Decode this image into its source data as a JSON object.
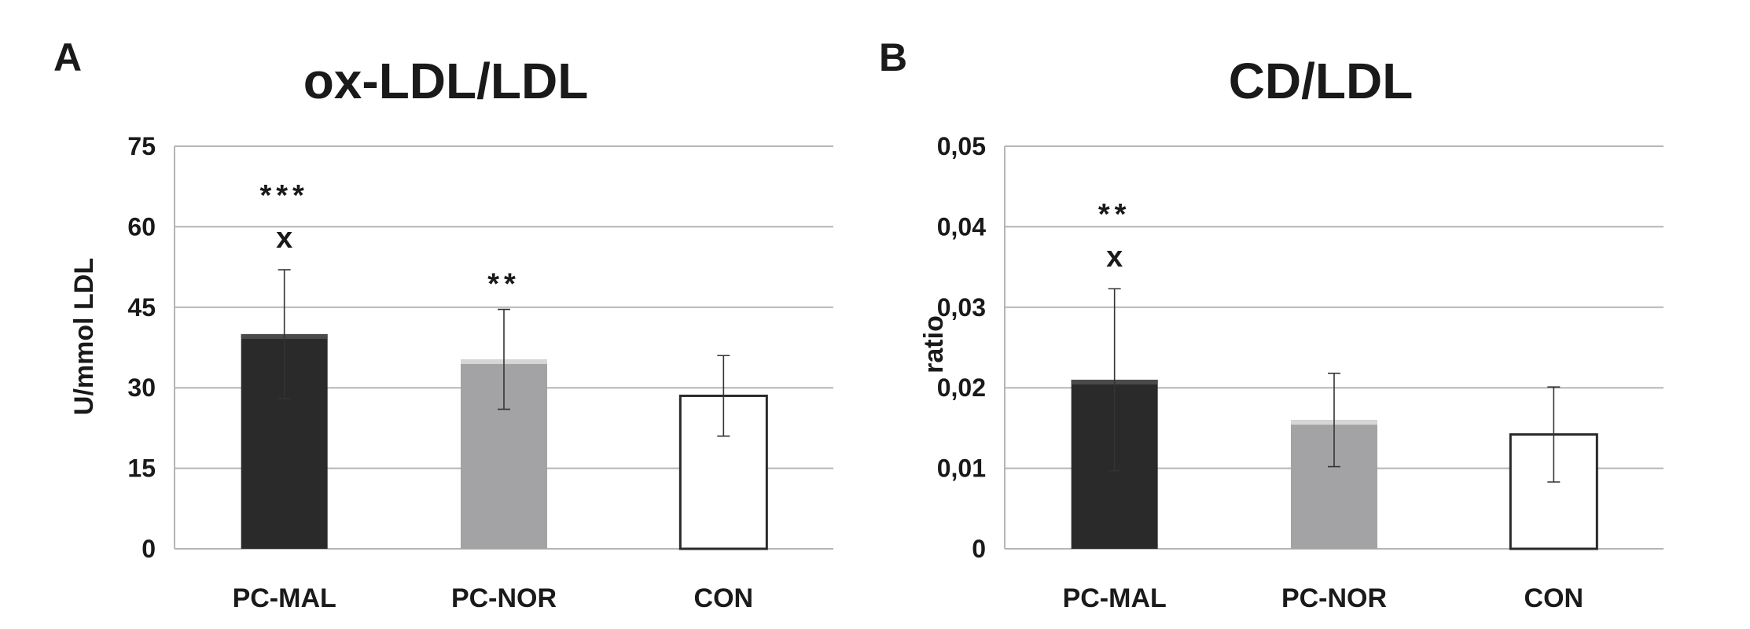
{
  "chart_data": [
    {
      "type": "bar",
      "panel_label": "A",
      "title": "ox-LDL/LDL",
      "ylabel": "U/mmol LDL",
      "xlabel": "",
      "categories": [
        "PC-MAL",
        "PC-NOR",
        "CON"
      ],
      "values": [
        40,
        35.3,
        28.5
      ],
      "errors": [
        12,
        9.3,
        7.5
      ],
      "bar_colors": [
        "#2a2a2a",
        "#a3a3a5",
        "#ffffff"
      ],
      "annotations": [
        {
          "category": "PC-MAL",
          "significance": "***",
          "extra": "x"
        },
        {
          "category": "PC-NOR",
          "significance": "**",
          "extra": ""
        },
        {
          "category": "CON",
          "significance": "",
          "extra": ""
        }
      ],
      "yticks": [
        0,
        15,
        30,
        45,
        60,
        75
      ],
      "ytick_labels": [
        "0",
        "15",
        "30",
        "45",
        "60",
        "75"
      ],
      "ylim": [
        0,
        75
      ],
      "grid": true,
      "legend": "none"
    },
    {
      "type": "bar",
      "panel_label": "B",
      "title": "CD/LDL",
      "ylabel": "ratio",
      "xlabel": "",
      "categories": [
        "PC-MAL",
        "PC-NOR",
        "CON"
      ],
      "values": [
        0.021,
        0.016,
        0.0142
      ],
      "errors": [
        0.0113,
        0.0058,
        0.0059
      ],
      "bar_colors": [
        "#2a2a2a",
        "#a3a3a5",
        "#ffffff"
      ],
      "annotations": [
        {
          "category": "PC-MAL",
          "significance": "**",
          "extra": "x"
        },
        {
          "category": "PC-NOR",
          "significance": "",
          "extra": ""
        },
        {
          "category": "CON",
          "significance": "",
          "extra": ""
        }
      ],
      "yticks": [
        0,
        0.01,
        0.02,
        0.03,
        0.04,
        0.05
      ],
      "ytick_labels": [
        "0",
        "0,01",
        "0,02",
        "0,03",
        "0,04",
        "0,05"
      ],
      "ylim": [
        0,
        0.05
      ],
      "grid": true,
      "legend": "none"
    }
  ]
}
